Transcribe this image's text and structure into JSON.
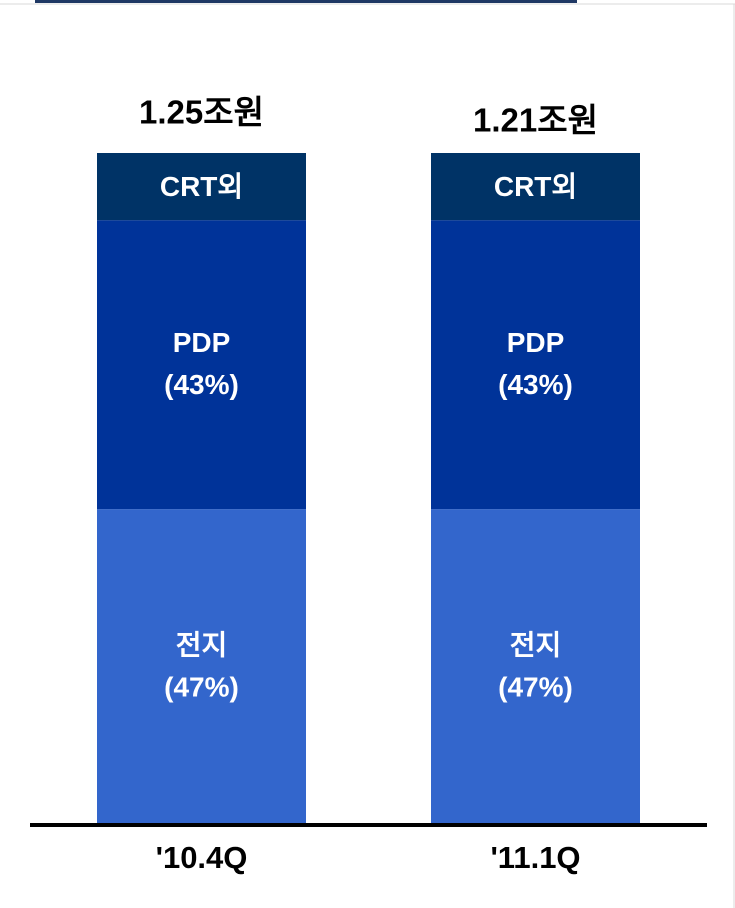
{
  "chart_data": {
    "type": "stacked_bar",
    "categories": [
      "'10.4Q",
      "'11.1Q"
    ],
    "totals": [
      "1.25조원",
      "1.21조원"
    ],
    "ylim": [
      0,
      100
    ],
    "series": [
      {
        "name": "전지",
        "color": "#3366cc",
        "values": [
          47,
          47
        ],
        "value_labels": [
          "(47%)",
          "(47%)"
        ]
      },
      {
        "name": "PDP",
        "color": "#003399",
        "values": [
          43,
          43
        ],
        "value_labels": [
          "(43%)",
          "(43%)"
        ]
      },
      {
        "name": "CRT외",
        "color": "#003366",
        "values": [
          10,
          10
        ]
      }
    ]
  }
}
